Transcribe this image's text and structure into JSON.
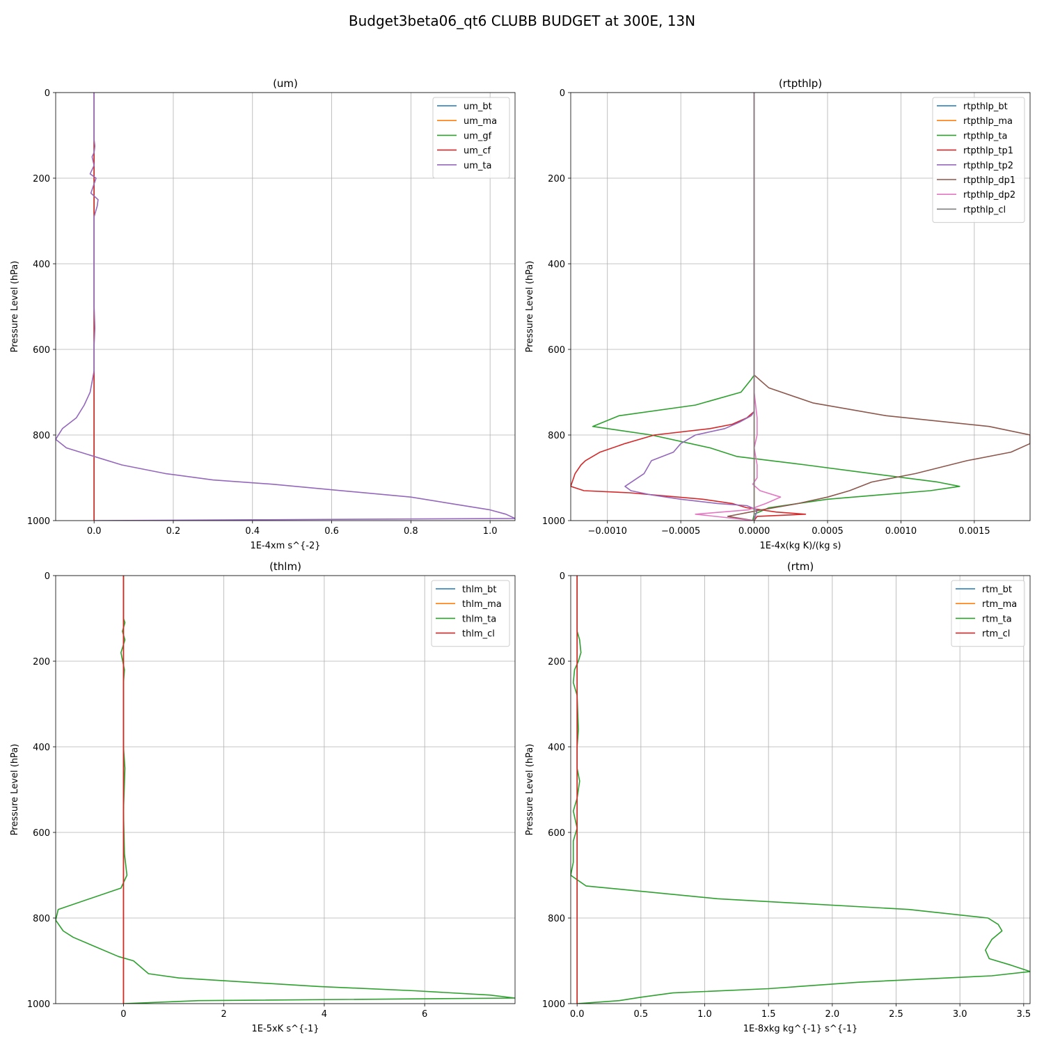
{
  "suptitle": "Budget3beta06_qt6 CLUBB BUDGET at 300E, 13N",
  "colors": {
    "C0": "#1f77b4",
    "C1": "#ff7f0e",
    "C2": "#2ca02c",
    "C3": "#d62728",
    "C4": "#9467bd",
    "C5": "#8c564b",
    "C6": "#e377c2",
    "C7": "#7f7f7f",
    "grid": "#b0b0b0"
  },
  "chart_data": [
    {
      "type": "line",
      "title": "(um)",
      "xlabel": "1E-4xm s^{-2}",
      "ylabel": "Pressure Level (hPa)",
      "xlim": [
        -0.097,
        1.063
      ],
      "ylim": [
        1000,
        0
      ],
      "xticks": [
        0.0,
        0.2,
        0.4,
        0.6,
        0.8,
        1.0
      ],
      "xtick_labels": [
        "0.0",
        "0.2",
        "0.4",
        "0.6",
        "0.8",
        "1.0"
      ],
      "yticks": [
        0,
        200,
        400,
        600,
        800,
        1000
      ],
      "ytick_labels": [
        "0",
        "200",
        "400",
        "600",
        "800",
        "1000"
      ],
      "grid": true,
      "legend": "top-right",
      "series": [
        {
          "name": "um_bt",
          "color": "C0",
          "x": [
            0,
            0
          ],
          "y": [
            0,
            1000
          ]
        },
        {
          "name": "um_ma",
          "color": "C1",
          "x": [
            0,
            0
          ],
          "y": [
            0,
            1000
          ]
        },
        {
          "name": "um_gf",
          "color": "C2",
          "x": [
            0,
            0
          ],
          "y": [
            0,
            1000
          ]
        },
        {
          "name": "um_cf",
          "color": "C3",
          "x": [
            0,
            0
          ],
          "y": [
            0,
            1000
          ]
        },
        {
          "name": "um_ta",
          "color": "C4",
          "x": [
            0.0,
            0.0,
            0.002,
            0.0,
            -0.005,
            0.0,
            -0.01,
            0.005,
            -0.008,
            0.01,
            0.008,
            0.0,
            0.0,
            0.0,
            0.0,
            0.002,
            0.0,
            0.0,
            -0.01,
            -0.025,
            -0.045,
            -0.08,
            -0.097,
            -0.07,
            0.0,
            0.07,
            0.18,
            0.3,
            0.45,
            0.6,
            0.8,
            0.9,
            1.0,
            1.04,
            1.063,
            0.0
          ],
          "y": [
            0,
            110,
            125,
            140,
            150,
            170,
            190,
            200,
            235,
            250,
            265,
            290,
            350,
            400,
            500,
            550,
            590,
            650,
            700,
            730,
            760,
            785,
            810,
            830,
            850,
            870,
            890,
            905,
            915,
            928,
            945,
            960,
            975,
            985,
            995,
            1000
          ]
        }
      ]
    },
    {
      "type": "line",
      "title": "(rtpthlp)",
      "xlabel": "1E-4x(kg K)/(kg s)",
      "ylabel": "Pressure Level (hPa)",
      "xlim": [
        -0.00125,
        0.00188
      ],
      "ylim": [
        1000,
        0
      ],
      "xticks": [
        -0.001,
        -0.0005,
        0.0,
        0.0005,
        0.001,
        0.0015
      ],
      "xtick_labels": [
        "−0.0010",
        "−0.0005",
        "0.0000",
        "0.0005",
        "0.0010",
        "0.0015"
      ],
      "yticks": [
        0,
        200,
        400,
        600,
        800,
        1000
      ],
      "ytick_labels": [
        "0",
        "200",
        "400",
        "600",
        "800",
        "1000"
      ],
      "grid": true,
      "legend": "top-right",
      "series": [
        {
          "name": "rtpthlp_bt",
          "color": "C0",
          "x": [
            0,
            0
          ],
          "y": [
            0,
            1000
          ]
        },
        {
          "name": "rtpthlp_ma",
          "color": "C1",
          "x": [
            0,
            0
          ],
          "y": [
            0,
            1000
          ]
        },
        {
          "name": "rtpthlp_ta",
          "color": "C2",
          "x": [
            0.0,
            0.0,
            -2e-05,
            -9e-05,
            -0.0004,
            -0.00092,
            -0.0011,
            -0.0007,
            -0.0003,
            -0.00012,
            0.00035,
            0.0008,
            0.00125,
            0.0014,
            0.0012,
            0.0005,
            0.0001,
            0.0,
            -1e-05
          ],
          "y": [
            0,
            660,
            670,
            700,
            730,
            755,
            780,
            800,
            830,
            850,
            870,
            890,
            910,
            920,
            930,
            950,
            970,
            985,
            1000
          ]
        },
        {
          "name": "rtpthlp_tp1",
          "color": "C3",
          "x": [
            0.0,
            0.0,
            -5e-05,
            -0.00015,
            -0.0003,
            -0.00068,
            -0.00088,
            -0.00105,
            -0.00115,
            -0.00118,
            -0.00122,
            -0.00125,
            -0.00116,
            -0.00085,
            -0.00035,
            -0.00015,
            -5e-05,
            0.00015,
            0.00035,
            2e-05,
            0.0
          ],
          "y": [
            0,
            745,
            760,
            775,
            785,
            800,
            820,
            840,
            860,
            870,
            890,
            920,
            930,
            935,
            950,
            960,
            970,
            980,
            985,
            990,
            1000
          ]
        },
        {
          "name": "rtpthlp_tp2",
          "color": "C4",
          "x": [
            0.0,
            0.0,
            -2e-05,
            -0.0001,
            -0.0002,
            -0.0004,
            -0.0005,
            -0.00055,
            -0.0007,
            -0.00075,
            -0.00088,
            -0.00084,
            -0.0007,
            -0.0005,
            -0.00025,
            -5e-05,
            2e-05,
            0.0
          ],
          "y": [
            0,
            745,
            755,
            770,
            785,
            800,
            820,
            840,
            860,
            890,
            920,
            930,
            940,
            950,
            960,
            965,
            975,
            1000
          ]
        },
        {
          "name": "rtpthlp_dp1",
          "color": "C5",
          "x": [
            0.0,
            0.0,
            0.0001,
            0.0004,
            0.0009,
            0.0016,
            0.00188,
            0.00188,
            0.00175,
            0.00145,
            0.0011,
            0.0008,
            0.00065,
            0.0005,
            0.0003,
            5e-05,
            -0.00018,
            0.0
          ],
          "y": [
            0,
            660,
            690,
            725,
            755,
            780,
            800,
            820,
            840,
            860,
            890,
            910,
            930,
            945,
            960,
            975,
            990,
            1000
          ]
        },
        {
          "name": "rtpthlp_dp2",
          "color": "C6",
          "x": [
            0.0,
            0.0,
            2e-05,
            2e-05,
            0.0,
            2e-05,
            2e-05,
            -1e-05,
            4e-05,
            0.00018,
            8e-05,
            -4e-05,
            -0.0004,
            0.0
          ],
          "y": [
            0,
            700,
            760,
            800,
            830,
            870,
            900,
            915,
            930,
            945,
            960,
            975,
            985,
            1000
          ]
        },
        {
          "name": "rtpthlp_cl",
          "color": "C7",
          "x": [
            0,
            0
          ],
          "y": [
            0,
            1000
          ]
        }
      ]
    },
    {
      "type": "line",
      "title": "(thlm)",
      "xlabel": "1E-5xK s^{-1}",
      "ylabel": "Pressure Level (hPa)",
      "xlim": [
        -1.35,
        7.8
      ],
      "ylim": [
        1000,
        0
      ],
      "xticks": [
        0,
        2,
        4,
        6
      ],
      "xtick_labels": [
        "0",
        "2",
        "4",
        "6"
      ],
      "yticks": [
        0,
        200,
        400,
        600,
        800,
        1000
      ],
      "ytick_labels": [
        "0",
        "200",
        "400",
        "600",
        "800",
        "1000"
      ],
      "grid": true,
      "legend": "top-right",
      "series": [
        {
          "name": "thlm_bt",
          "color": "C0",
          "x": [
            0,
            0
          ],
          "y": [
            0,
            1000
          ]
        },
        {
          "name": "thlm_ma",
          "color": "C1",
          "x": [
            0,
            0
          ],
          "y": [
            0,
            1000
          ]
        },
        {
          "name": "thlm_ta",
          "color": "C2",
          "x": [
            0.0,
            0.0,
            0.03,
            -0.02,
            0.03,
            -0.05,
            0.02,
            0.0,
            0.0,
            0.0,
            0.0,
            0.03,
            0.0,
            0.02,
            0.07,
            -0.05,
            -1.3,
            -1.35,
            -1.2,
            -1.0,
            -0.6,
            -0.1,
            0.2,
            0.5,
            1.1,
            2.5,
            3.9,
            5.8,
            7.3,
            7.8,
            1.5,
            0.0
          ],
          "y": [
            0,
            100,
            110,
            130,
            150,
            180,
            220,
            250,
            300,
            350,
            400,
            450,
            550,
            650,
            700,
            730,
            780,
            805,
            830,
            845,
            865,
            890,
            900,
            930,
            940,
            950,
            960,
            970,
            980,
            987,
            993,
            1000
          ]
        },
        {
          "name": "thlm_cl",
          "color": "C3",
          "x": [
            0,
            0
          ],
          "y": [
            0,
            1000
          ]
        }
      ]
    },
    {
      "type": "line",
      "title": "(rtm)",
      "xlabel": "1E-8xkg kg^{-1} s^{-1}",
      "ylabel": "Pressure Level (hPa)",
      "xlim": [
        -0.05,
        3.55
      ],
      "ylim": [
        1000,
        0
      ],
      "xticks": [
        0.0,
        0.5,
        1.0,
        1.5,
        2.0,
        2.5,
        3.0,
        3.5
      ],
      "xtick_labels": [
        "0.0",
        "0.5",
        "1.0",
        "1.5",
        "2.0",
        "2.5",
        "3.0",
        "3.5"
      ],
      "yticks": [
        0,
        200,
        400,
        600,
        800,
        1000
      ],
      "ytick_labels": [
        "0",
        "200",
        "400",
        "600",
        "800",
        "1000"
      ],
      "grid": true,
      "legend": "top-right",
      "series": [
        {
          "name": "rtm_bt",
          "color": "C0",
          "x": [
            0,
            0
          ],
          "y": [
            0,
            1000
          ]
        },
        {
          "name": "rtm_ma",
          "color": "C1",
          "x": [
            0,
            0
          ],
          "y": [
            0,
            1000
          ]
        },
        {
          "name": "rtm_ta",
          "color": "C2",
          "x": [
            0.0,
            0.0,
            0.02,
            0.03,
            0.01,
            -0.02,
            -0.03,
            0.0,
            0.01,
            0.0,
            0.0,
            0.02,
            0.0,
            -0.03,
            0.0,
            -0.03,
            -0.03,
            -0.05,
            0.07,
            1.1,
            2.6,
            3.22,
            3.3,
            3.33,
            3.25,
            3.2,
            3.23,
            3.4,
            3.55,
            3.25,
            2.2,
            1.5,
            0.75,
            0.5,
            0.33,
            0.0
          ],
          "y": [
            0,
            130,
            150,
            180,
            200,
            220,
            250,
            280,
            360,
            400,
            450,
            480,
            520,
            550,
            590,
            620,
            670,
            700,
            725,
            755,
            780,
            800,
            815,
            830,
            850,
            875,
            895,
            910,
            925,
            935,
            950,
            965,
            975,
            985,
            993,
            1000
          ]
        },
        {
          "name": "rtm_cl",
          "color": "C3",
          "x": [
            0,
            0
          ],
          "y": [
            0,
            1000
          ]
        }
      ]
    }
  ]
}
